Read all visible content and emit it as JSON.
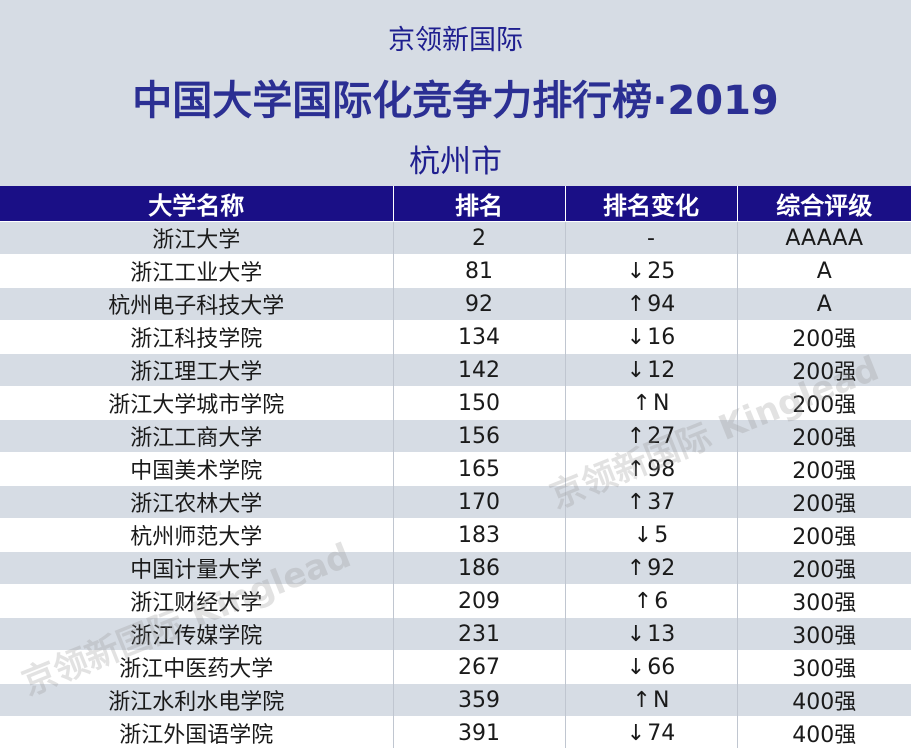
{
  "header": {
    "org": "京领新国际",
    "title": "中国大学国际化竞争力排行榜·2019",
    "city": "杭州市"
  },
  "table": {
    "columns": [
      "大学名称",
      "排名",
      "排名变化",
      "综合评级"
    ],
    "rows": [
      {
        "name": "浙江大学",
        "rank": "2",
        "dir": "",
        "change": "-",
        "grade": "AAAAA"
      },
      {
        "name": "浙江工业大学",
        "rank": "81",
        "dir": "down",
        "change": "25",
        "grade": "A"
      },
      {
        "name": "杭州电子科技大学",
        "rank": "92",
        "dir": "up",
        "change": "94",
        "grade": "A"
      },
      {
        "name": "浙江科技学院",
        "rank": "134",
        "dir": "down",
        "change": "16",
        "grade": "200强"
      },
      {
        "name": "浙江理工大学",
        "rank": "142",
        "dir": "down",
        "change": "12",
        "grade": "200强"
      },
      {
        "name": "浙江大学城市学院",
        "rank": "150",
        "dir": "up",
        "change": "N",
        "grade": "200强"
      },
      {
        "name": "浙江工商大学",
        "rank": "156",
        "dir": "up",
        "change": "27",
        "grade": "200强"
      },
      {
        "name": "中国美术学院",
        "rank": "165",
        "dir": "up",
        "change": "98",
        "grade": "200强"
      },
      {
        "name": "浙江农林大学",
        "rank": "170",
        "dir": "up",
        "change": "37",
        "grade": "200强"
      },
      {
        "name": "杭州师范大学",
        "rank": "183",
        "dir": "down",
        "change": "5",
        "grade": "200强"
      },
      {
        "name": "中国计量大学",
        "rank": "186",
        "dir": "up",
        "change": "92",
        "grade": "200强"
      },
      {
        "name": "浙江财经大学",
        "rank": "209",
        "dir": "up",
        "change": "6",
        "grade": "300强"
      },
      {
        "name": "浙江传媒学院",
        "rank": "231",
        "dir": "down",
        "change": "13",
        "grade": "300强"
      },
      {
        "name": "浙江中医药大学",
        "rank": "267",
        "dir": "down",
        "change": "66",
        "grade": "300强"
      },
      {
        "name": "浙江水利水电学院",
        "rank": "359",
        "dir": "up",
        "change": "N",
        "grade": "400强"
      },
      {
        "name": "浙江外国语学院",
        "rank": "391",
        "dir": "down",
        "change": "74",
        "grade": "400强"
      }
    ]
  },
  "watermark": {
    "text_1": "京领新国际 Kinglead",
    "text_2": "京领新国际 Kinglead"
  },
  "colors": {
    "header_bg": "#d6dce4",
    "title_color": "#2b2f93",
    "table_header_bg": "#1a0f86",
    "row_alt_bg": "#d6dce4"
  }
}
